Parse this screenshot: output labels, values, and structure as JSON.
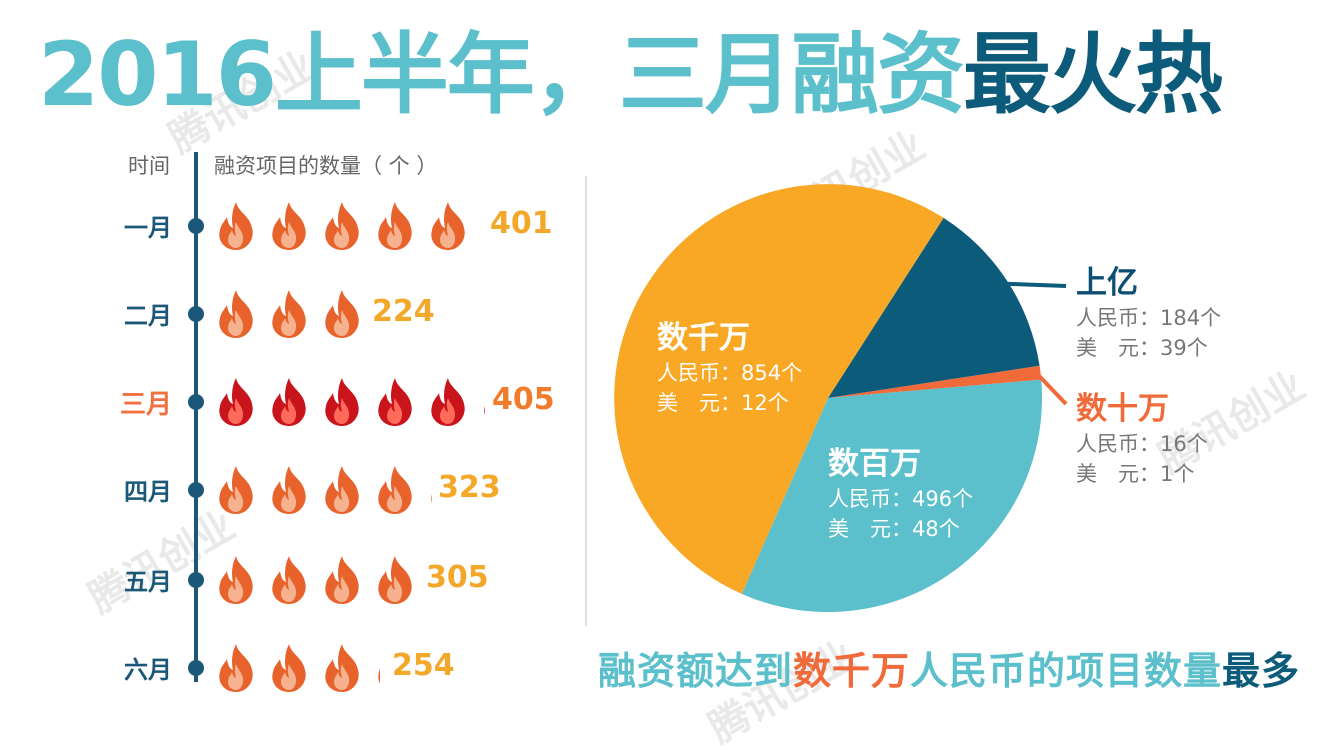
{
  "title": {
    "part1": "2016上半年，三月",
    "part2": "融资",
    "part3": "最火热"
  },
  "watermark": "腾讯创业",
  "timeline_header": {
    "time": "时间",
    "count": "融资项目的数量（ 个 ）"
  },
  "colors": {
    "cyan": "#5bc0cb",
    "navy": "#0d5b7a",
    "orange": "#f9a825",
    "red_orange": "#f06a3a",
    "flame_normal": "#e8632c",
    "flame_hot": "#c8141a"
  },
  "chart_data": [
    {
      "type": "bar",
      "title": "",
      "xlabel": "时间",
      "ylabel": "融资项目的数量（ 个 ）",
      "unit_per_icon": 80,
      "categories": [
        "一月",
        "二月",
        "三月",
        "四月",
        "五月",
        "六月"
      ],
      "values": [
        401,
        224,
        405,
        323,
        305,
        254
      ],
      "highlight": "三月"
    },
    {
      "type": "pie",
      "slices": [
        {
          "name": "数千万",
          "value": 866,
          "rmb_label": "人民币：854个",
          "usd_label": "美　元：12个",
          "color": "#f9a825"
        },
        {
          "name": "数百万",
          "value": 544,
          "rmb_label": "人民币：496个",
          "usd_label": "美　元：48个",
          "color": "#5bc0cb"
        },
        {
          "name": "上亿",
          "value": 223,
          "rmb_label": "人民币：184个",
          "usd_label": "美　元：39个",
          "color": "#0d5b7a"
        },
        {
          "name": "数十万",
          "value": 17,
          "rmb_label": "人民币：16个",
          "usd_label": "美　元：1个",
          "color": "#f06a3a"
        }
      ]
    }
  ],
  "conclusion": {
    "part1": "融资额达到",
    "part2": "数千万",
    "part3": "人民币的项目数量",
    "part4": "最多"
  }
}
